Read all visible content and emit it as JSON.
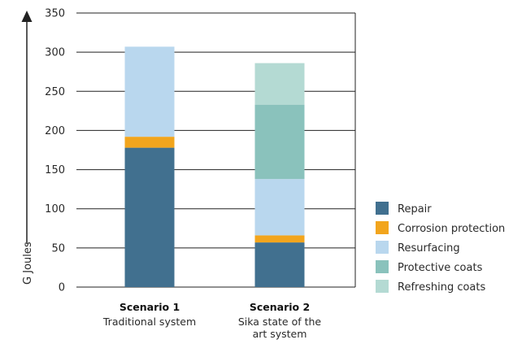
{
  "chart_data": {
    "type": "bar",
    "stacked": true,
    "ylabel": "G Joules",
    "ylim": [
      0,
      350
    ],
    "yticks": [
      0,
      50,
      100,
      150,
      200,
      250,
      300,
      350
    ],
    "grid": true,
    "legend_position": "bottom-right",
    "categories": [
      {
        "title": "Scenario 1",
        "subtitle": [
          "Traditional system"
        ]
      },
      {
        "title": "Scenario 2",
        "subtitle": [
          "Sika state of the",
          "art system"
        ]
      }
    ],
    "series": [
      {
        "name": "Repair",
        "color": "#41708f",
        "values": [
          178,
          57
        ]
      },
      {
        "name": "Corrosion protection",
        "color": "#f2a51d",
        "values": [
          14,
          9
        ]
      },
      {
        "name": "Resurfacing",
        "color": "#b9d7ee",
        "values": [
          115,
          72
        ]
      },
      {
        "name": "Protective coats",
        "color": "#8ac2bc",
        "values": [
          0,
          95
        ]
      },
      {
        "name": "Refreshing coats",
        "color": "#b4dad3",
        "values": [
          0,
          53
        ]
      }
    ]
  }
}
